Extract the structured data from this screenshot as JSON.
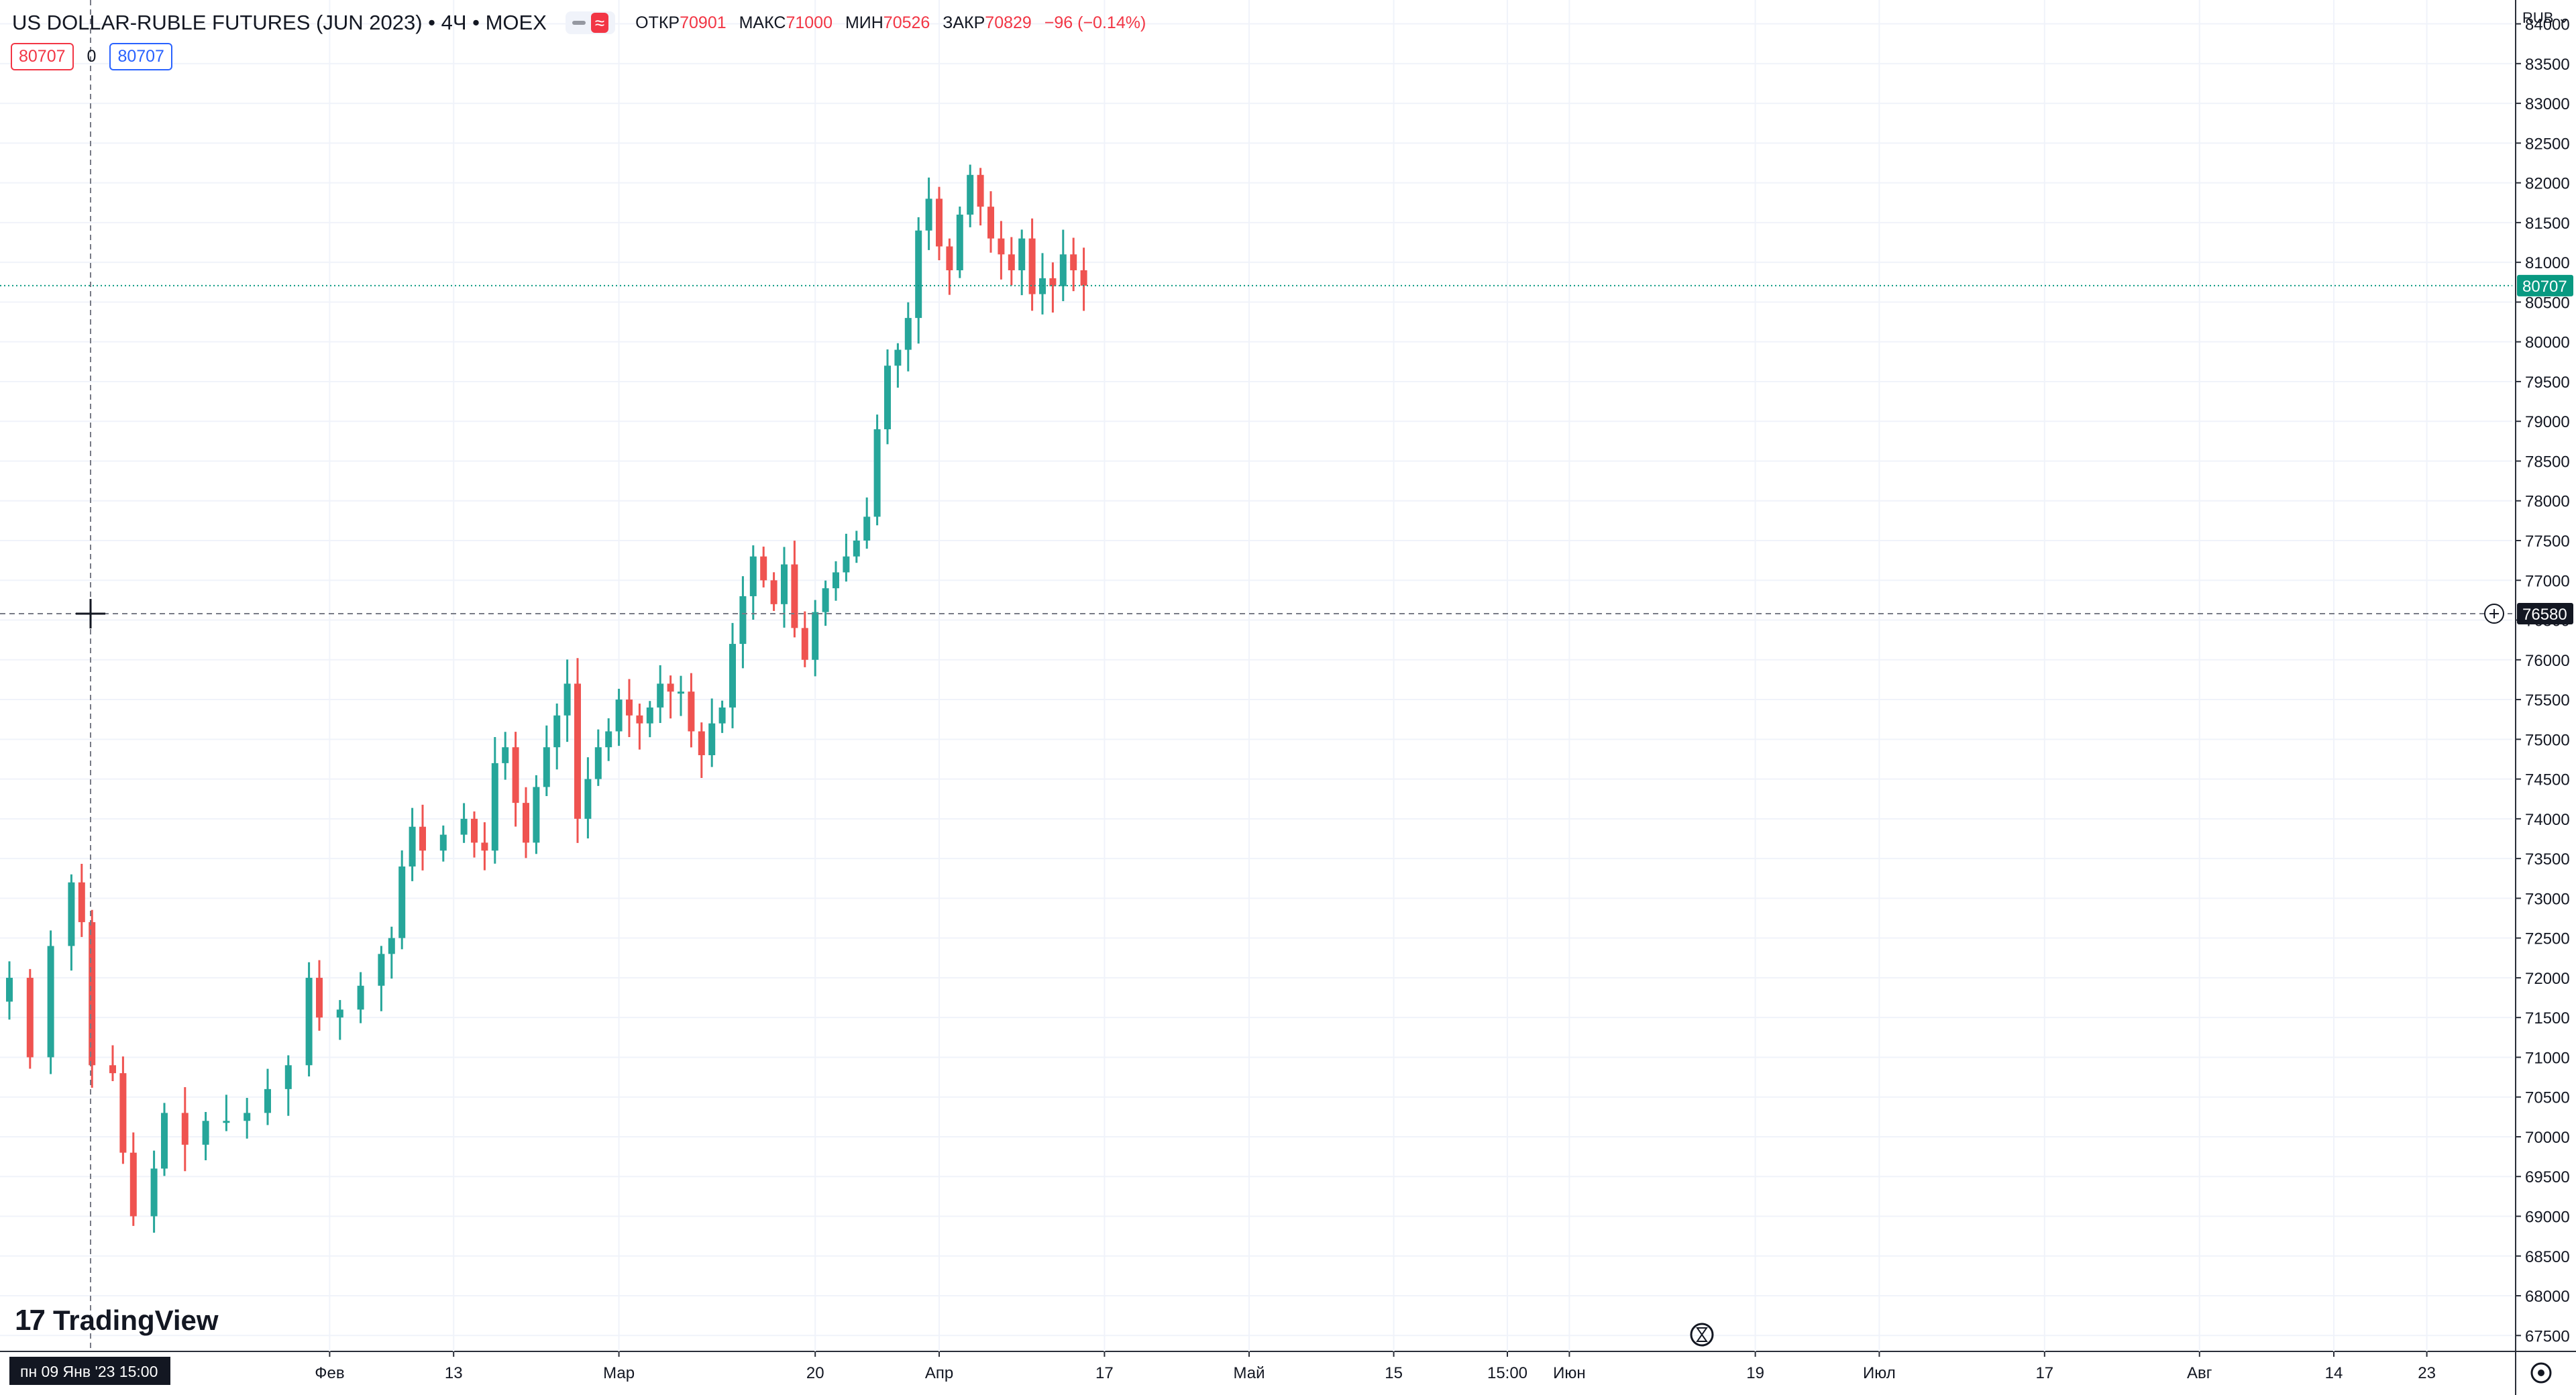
{
  "legend": {
    "title": "US DOLLAR-RUBLE FUTURES (JUN 2023) • 4Ч • MOEX",
    "hide_icon": "minus-icon",
    "compare_icon": "approx-icon",
    "open_label": "ОТКР",
    "open_value": "70901",
    "high_label": "МАКС",
    "high_value": "71000",
    "low_label": "МИН",
    "low_value": "70526",
    "close_label": "ЗАКР",
    "close_value": "70829",
    "change": "−96 (−0.14%)"
  },
  "indicators": {
    "bid": "80707",
    "spread": "0",
    "ask": "80707"
  },
  "axis": {
    "currency": "RUB",
    "last_price": "80707",
    "crosshair_price": "76580",
    "crosshair_time": "пн 09 Янв '23   15:00"
  },
  "brand": {
    "name": "TradingView"
  },
  "colors": {
    "up": "#26a69a",
    "down": "#ef5350",
    "grid": "#f0f3fa",
    "last_price": "#089981"
  },
  "chart_data": {
    "type": "candlestick",
    "symbol": "US DOLLAR-RUBLE FUTURES (JUN 2023)",
    "interval": "4Ч",
    "exchange": "MOEX",
    "currency": "RUB",
    "ylim": [
      67300,
      84300
    ],
    "y_ticks": [
      67500,
      68000,
      68500,
      69000,
      69500,
      70000,
      70500,
      71000,
      71500,
      72000,
      72500,
      73000,
      73500,
      74000,
      74500,
      75000,
      75500,
      76000,
      76500,
      77000,
      77500,
      78000,
      78500,
      79000,
      79500,
      80000,
      80500,
      81000,
      81500,
      82000,
      82500,
      83000,
      83500,
      84000
    ],
    "x_ticks": [
      {
        "label": "Фев",
        "day": 31
      },
      {
        "label": "13",
        "day": 43
      },
      {
        "label": "Мар",
        "day": 59
      },
      {
        "label": "20",
        "day": 78
      },
      {
        "label": "Апр",
        "day": 90
      },
      {
        "label": "17",
        "day": 106
      },
      {
        "label": "Май",
        "day": 120
      },
      {
        "label": "15",
        "day": 134
      },
      {
        "label": "15:00",
        "day": 145
      },
      {
        "label": "Июн",
        "day": 151
      },
      {
        "label": "19",
        "day": 169
      },
      {
        "label": "Июл",
        "day": 181
      },
      {
        "label": "17",
        "day": 197
      },
      {
        "label": "Авг",
        "day": 212
      },
      {
        "label": "14",
        "day": 225
      },
      {
        "label": "23",
        "day": 234
      }
    ],
    "closes": [
      {
        "day": 0,
        "close": 72000
      },
      {
        "day": 2,
        "close": 71000
      },
      {
        "day": 4,
        "close": 72400
      },
      {
        "day": 6,
        "close": 73200
      },
      {
        "day": 7,
        "close": 72700
      },
      {
        "day": 8,
        "close": 70900
      },
      {
        "day": 10,
        "close": 70800
      },
      {
        "day": 11,
        "close": 69800
      },
      {
        "day": 12,
        "close": 69000
      },
      {
        "day": 14,
        "close": 69600
      },
      {
        "day": 15,
        "close": 70300
      },
      {
        "day": 17,
        "close": 69900
      },
      {
        "day": 19,
        "close": 70200
      },
      {
        "day": 21,
        "close": 70200
      },
      {
        "day": 23,
        "close": 70300
      },
      {
        "day": 25,
        "close": 70600
      },
      {
        "day": 27,
        "close": 70900
      },
      {
        "day": 29,
        "close": 72000
      },
      {
        "day": 30,
        "close": 71500
      },
      {
        "day": 32,
        "close": 71600
      },
      {
        "day": 34,
        "close": 71900
      },
      {
        "day": 36,
        "close": 72300
      },
      {
        "day": 37,
        "close": 72500
      },
      {
        "day": 38,
        "close": 73400
      },
      {
        "day": 39,
        "close": 73900
      },
      {
        "day": 40,
        "close": 73600
      },
      {
        "day": 42,
        "close": 73800
      },
      {
        "day": 44,
        "close": 74000
      },
      {
        "day": 45,
        "close": 73700
      },
      {
        "day": 46,
        "close": 73600
      },
      {
        "day": 47,
        "close": 74700
      },
      {
        "day": 48,
        "close": 74900
      },
      {
        "day": 49,
        "close": 74200
      },
      {
        "day": 50,
        "close": 73700
      },
      {
        "day": 51,
        "close": 74400
      },
      {
        "day": 52,
        "close": 74900
      },
      {
        "day": 53,
        "close": 75300
      },
      {
        "day": 54,
        "close": 75700
      },
      {
        "day": 55,
        "close": 74000
      },
      {
        "day": 56,
        "close": 74500
      },
      {
        "day": 57,
        "close": 74900
      },
      {
        "day": 58,
        "close": 75100
      },
      {
        "day": 59,
        "close": 75500
      },
      {
        "day": 60,
        "close": 75300
      },
      {
        "day": 61,
        "close": 75200
      },
      {
        "day": 62,
        "close": 75400
      },
      {
        "day": 63,
        "close": 75700
      },
      {
        "day": 64,
        "close": 75600
      },
      {
        "day": 65,
        "close": 75600
      },
      {
        "day": 66,
        "close": 75100
      },
      {
        "day": 67,
        "close": 74800
      },
      {
        "day": 68,
        "close": 75200
      },
      {
        "day": 69,
        "close": 75400
      },
      {
        "day": 70,
        "close": 76200
      },
      {
        "day": 71,
        "close": 76800
      },
      {
        "day": 72,
        "close": 77300
      },
      {
        "day": 73,
        "close": 77000
      },
      {
        "day": 74,
        "close": 76700
      },
      {
        "day": 75,
        "close": 77200
      },
      {
        "day": 76,
        "close": 76400
      },
      {
        "day": 77,
        "close": 76000
      },
      {
        "day": 78,
        "close": 76600
      },
      {
        "day": 79,
        "close": 76900
      },
      {
        "day": 80,
        "close": 77100
      },
      {
        "day": 81,
        "close": 77300
      },
      {
        "day": 82,
        "close": 77500
      },
      {
        "day": 83,
        "close": 77800
      },
      {
        "day": 84,
        "close": 78900
      },
      {
        "day": 85,
        "close": 79700
      },
      {
        "day": 86,
        "close": 79900
      },
      {
        "day": 87,
        "close": 80300
      },
      {
        "day": 88,
        "close": 81400
      },
      {
        "day": 89,
        "close": 81800
      },
      {
        "day": 90,
        "close": 81200
      },
      {
        "day": 91,
        "close": 80900
      },
      {
        "day": 92,
        "close": 81600
      },
      {
        "day": 93,
        "close": 82100
      },
      {
        "day": 94,
        "close": 81700
      },
      {
        "day": 95,
        "close": 81300
      },
      {
        "day": 96,
        "close": 81100
      },
      {
        "day": 97,
        "close": 80900
      },
      {
        "day": 98,
        "close": 81300
      },
      {
        "day": 99,
        "close": 80600
      },
      {
        "day": 100,
        "close": 80800
      },
      {
        "day": 101,
        "close": 80700
      },
      {
        "day": 102,
        "close": 81100
      },
      {
        "day": 103,
        "close": 80900
      },
      {
        "day": 104,
        "close": 80707
      }
    ],
    "last_price": 80707,
    "crosshair": {
      "day": 9,
      "price": 76580
    }
  }
}
